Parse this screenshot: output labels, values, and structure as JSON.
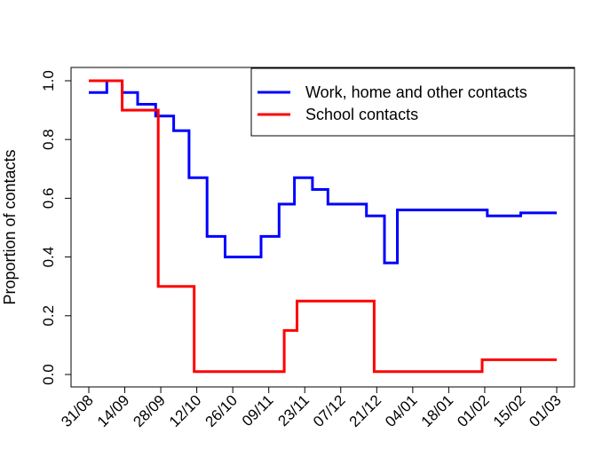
{
  "chart_data": {
    "type": "line",
    "title": "",
    "xlabel": "",
    "ylabel": "Proportion of contacts",
    "ylim": [
      0,
      1
    ],
    "yticks": [
      "0.0",
      "0.2",
      "0.4",
      "0.6",
      "0.8",
      "1.0"
    ],
    "xticks": [
      "31/08",
      "14/09",
      "28/09",
      "12/10",
      "26/10",
      "09/11",
      "23/11",
      "07/12",
      "21/12",
      "04/01",
      "18/01",
      "01/02",
      "15/02",
      "01/03"
    ],
    "x_unit": "days after 31/08",
    "grid": false,
    "legend_position": "top-right",
    "series": [
      {
        "name": "Work, home and other contacts",
        "color": "#0000ff",
        "step_points": [
          [
            0,
            0.96
          ],
          [
            7,
            0.96
          ],
          [
            7,
            1.0
          ],
          [
            13,
            1.0
          ],
          [
            13,
            0.96
          ],
          [
            19,
            0.96
          ],
          [
            19,
            0.92
          ],
          [
            26,
            0.92
          ],
          [
            26,
            0.88
          ],
          [
            33,
            0.88
          ],
          [
            33,
            0.83
          ],
          [
            39,
            0.83
          ],
          [
            39,
            0.67
          ],
          [
            46,
            0.67
          ],
          [
            46,
            0.47
          ],
          [
            53,
            0.47
          ],
          [
            53,
            0.4
          ],
          [
            67,
            0.4
          ],
          [
            67,
            0.47
          ],
          [
            74,
            0.47
          ],
          [
            74,
            0.58
          ],
          [
            80,
            0.58
          ],
          [
            80,
            0.67
          ],
          [
            87,
            0.67
          ],
          [
            87,
            0.63
          ],
          [
            93,
            0.63
          ],
          [
            93,
            0.58
          ],
          [
            108,
            0.58
          ],
          [
            108,
            0.54
          ],
          [
            115,
            0.54
          ],
          [
            115,
            0.38
          ],
          [
            120,
            0.38
          ],
          [
            120,
            0.56
          ],
          [
            155,
            0.56
          ],
          [
            155,
            0.54
          ],
          [
            168,
            0.54
          ],
          [
            168,
            0.55
          ],
          [
            182,
            0.55
          ]
        ]
      },
      {
        "name": "School contacts",
        "color": "#ff0000",
        "step_points": [
          [
            0,
            1.0
          ],
          [
            13,
            1.0
          ],
          [
            13,
            0.9
          ],
          [
            27,
            0.9
          ],
          [
            27,
            0.3
          ],
          [
            41,
            0.3
          ],
          [
            41,
            0.01
          ],
          [
            76,
            0.01
          ],
          [
            76,
            0.15
          ],
          [
            81,
            0.15
          ],
          [
            81,
            0.25
          ],
          [
            111,
            0.25
          ],
          [
            111,
            0.01
          ],
          [
            153,
            0.01
          ],
          [
            153,
            0.05
          ],
          [
            182,
            0.05
          ]
        ]
      }
    ]
  }
}
